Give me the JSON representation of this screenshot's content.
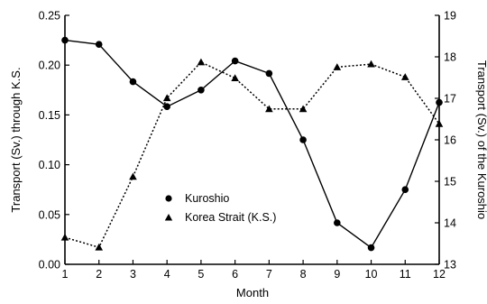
{
  "chart_data": {
    "type": "line",
    "x": [
      1,
      2,
      3,
      4,
      5,
      6,
      7,
      8,
      9,
      10,
      11,
      12
    ],
    "xlabel": "Month",
    "xlim": [
      1,
      12
    ],
    "x_ticks": [
      "1",
      "2",
      "3",
      "4",
      "5",
      "6",
      "7",
      "8",
      "9",
      "10",
      "11",
      "12"
    ],
    "left_axis": {
      "label": "Transport (Sv.) through K.S.",
      "ylim": [
        0.0,
        0.25
      ],
      "ticks": [
        "0.00",
        "0.05",
        "0.10",
        "0.15",
        "0.20",
        "0.25"
      ]
    },
    "right_axis": {
      "label": "Transport (Sv.) of the Kuroshio",
      "ylim": [
        13,
        19
      ],
      "ticks": [
        "13",
        "14",
        "15",
        "16",
        "17",
        "18",
        "19"
      ]
    },
    "series": [
      {
        "name": "Kuroshio",
        "axis": "right",
        "marker": "circle",
        "line_style": "solid",
        "values": [
          18.4,
          18.3,
          17.4,
          16.8,
          17.2,
          17.9,
          17.6,
          16.0,
          14.0,
          13.4,
          14.8,
          16.9
        ]
      },
      {
        "name": "Korea Strait (K.S.)",
        "axis": "left",
        "marker": "triangle",
        "line_style": "dotted",
        "values": [
          0.027,
          0.017,
          0.088,
          0.167,
          0.203,
          0.187,
          0.156,
          0.156,
          0.198,
          0.201,
          0.188,
          0.141
        ]
      }
    ],
    "legend": {
      "placement": "lower-center"
    },
    "grid": false
  }
}
